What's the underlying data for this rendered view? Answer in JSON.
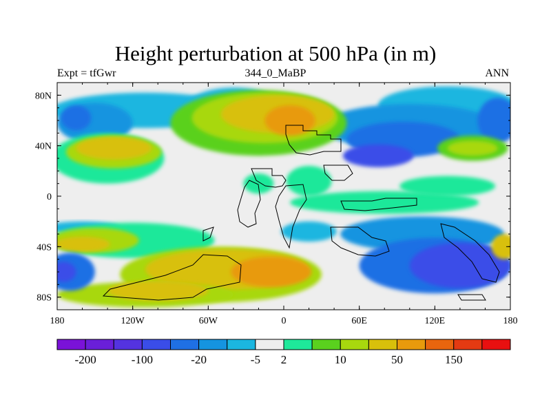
{
  "chart_data": {
    "type": "heatmap",
    "title": "Height perturbation at 500 hPa (in m)",
    "left_string": "Expt = tfGwr",
    "center_string": "344_0_MaBP",
    "right_string": "ANN",
    "x_axis": {
      "range": [
        -180,
        180
      ],
      "ticks": [
        -180,
        -120,
        -60,
        0,
        60,
        120,
        180
      ],
      "tick_labels": [
        "180",
        "120W",
        "60W",
        "0",
        "60E",
        "120E",
        "180"
      ]
    },
    "y_axis": {
      "range": [
        -90,
        90
      ],
      "ticks": [
        80,
        40,
        0,
        -40,
        -80
      ],
      "tick_labels": [
        "80N",
        "40N",
        "0",
        "40S",
        "80S"
      ]
    },
    "colorbar": {
      "colors": [
        "#7a12d8",
        "#6a1fd9",
        "#5433e0",
        "#3a4de8",
        "#1f70e4",
        "#1594e0",
        "#1bb6e0",
        "#eeeeee",
        "#1ee89a",
        "#5ad11e",
        "#a8d80e",
        "#d8c00b",
        "#e89a0c",
        "#e8650e",
        "#e43a12",
        "#e81010"
      ],
      "labels": [
        "-200",
        "-100",
        "-20",
        "-5",
        "2",
        "10",
        "50",
        "150"
      ],
      "label_after_box": [
        0,
        2,
        4,
        6,
        7,
        9,
        11,
        13
      ]
    },
    "blobs": [
      {
        "lon": -110,
        "lat": 68,
        "rlon": 75,
        "rlat": 14,
        "c": "#1bb6e0"
      },
      {
        "lon": -40,
        "lat": 68,
        "rlon": 40,
        "rlat": 18,
        "c": "#1bb6e0"
      },
      {
        "lon": -150,
        "lat": 58,
        "rlon": 30,
        "rlat": 16,
        "c": "#1594e0"
      },
      {
        "lon": -165,
        "lat": 62,
        "rlon": 12,
        "rlat": 10,
        "c": "#1f70e4"
      },
      {
        "lon": 130,
        "lat": 72,
        "rlon": 55,
        "rlat": 15,
        "c": "#1bb6e0"
      },
      {
        "lon": 100,
        "lat": 55,
        "rlon": 70,
        "rlat": 18,
        "c": "#1594e0"
      },
      {
        "lon": 95,
        "lat": 45,
        "rlon": 45,
        "rlat": 14,
        "c": "#1f70e4"
      },
      {
        "lon": 75,
        "lat": 32,
        "rlon": 28,
        "rlat": 9,
        "c": "#3a4de8"
      },
      {
        "lon": 170,
        "lat": 60,
        "rlon": 16,
        "rlat": 18,
        "c": "#1f70e4"
      },
      {
        "lon": -140,
        "lat": 30,
        "rlon": 45,
        "rlat": 20,
        "c": "#1ee89a"
      },
      {
        "lon": -135,
        "lat": 35,
        "rlon": 38,
        "rlat": 13,
        "c": "#a8d80e"
      },
      {
        "lon": -135,
        "lat": 38,
        "rlon": 30,
        "rlat": 9,
        "c": "#d8c00b"
      },
      {
        "lon": -20,
        "lat": 58,
        "rlon": 70,
        "rlat": 26,
        "c": "#5ad11e"
      },
      {
        "lon": -15,
        "lat": 62,
        "rlon": 58,
        "rlat": 20,
        "c": "#a8d80e"
      },
      {
        "lon": -5,
        "lat": 65,
        "rlon": 45,
        "rlat": 15,
        "c": "#d8c00b"
      },
      {
        "lon": 5,
        "lat": 60,
        "rlon": 20,
        "rlat": 12,
        "c": "#e89a0c"
      },
      {
        "lon": 150,
        "lat": 38,
        "rlon": 28,
        "rlat": 10,
        "c": "#5ad11e"
      },
      {
        "lon": 150,
        "lat": 38,
        "rlon": 20,
        "rlat": 6,
        "c": "#a8d80e"
      },
      {
        "lon": 20,
        "lat": 12,
        "rlon": 18,
        "rlat": 12,
        "c": "#1ee89a"
      },
      {
        "lon": -20,
        "lat": 10,
        "rlon": 12,
        "rlat": 8,
        "c": "#1ee89a"
      },
      {
        "lon": 80,
        "lat": -5,
        "rlon": 75,
        "rlat": 9,
        "c": "#1ee89a"
      },
      {
        "lon": 130,
        "lat": 8,
        "rlon": 38,
        "rlat": 8,
        "c": "#1ee89a"
      },
      {
        "lon": -160,
        "lat": -25,
        "rlon": 30,
        "rlat": 5,
        "c": "#1bb6e0"
      },
      {
        "lon": -120,
        "lat": -35,
        "rlon": 65,
        "rlat": 14,
        "c": "#1ee89a"
      },
      {
        "lon": -150,
        "lat": -35,
        "rlon": 35,
        "rlat": 10,
        "c": "#a8d80e"
      },
      {
        "lon": -160,
        "lat": -38,
        "rlon": 22,
        "rlat": 6,
        "c": "#d8c00b"
      },
      {
        "lon": -50,
        "lat": -62,
        "rlon": 80,
        "rlat": 22,
        "c": "#a8d80e"
      },
      {
        "lon": -45,
        "lat": -58,
        "rlon": 65,
        "rlat": 16,
        "c": "#d8c00b"
      },
      {
        "lon": -10,
        "lat": -60,
        "rlon": 32,
        "rlat": 12,
        "c": "#e89a0c"
      },
      {
        "lon": -110,
        "lat": -78,
        "rlon": 70,
        "rlat": 10,
        "c": "#a8d80e"
      },
      {
        "lon": -100,
        "lat": -75,
        "rlon": 40,
        "rlat": 8,
        "c": "#d8c00b"
      },
      {
        "lon": 20,
        "lat": -28,
        "rlon": 22,
        "rlat": 8,
        "c": "#1bb6e0"
      },
      {
        "lon": 110,
        "lat": -30,
        "rlon": 65,
        "rlat": 14,
        "c": "#1594e0"
      },
      {
        "lon": 120,
        "lat": -55,
        "rlon": 60,
        "rlat": 22,
        "c": "#1f70e4"
      },
      {
        "lon": 140,
        "lat": -55,
        "rlon": 40,
        "rlat": 18,
        "c": "#3a4de8"
      },
      {
        "lon": -170,
        "lat": -60,
        "rlon": 20,
        "rlat": 15,
        "c": "#1f70e4"
      },
      {
        "lon": -175,
        "lat": -60,
        "rlon": 10,
        "rlat": 8,
        "c": "#3a4de8"
      },
      {
        "lon": 175,
        "lat": -40,
        "rlon": 10,
        "rlat": 10,
        "c": "#d8c00b"
      }
    ]
  }
}
